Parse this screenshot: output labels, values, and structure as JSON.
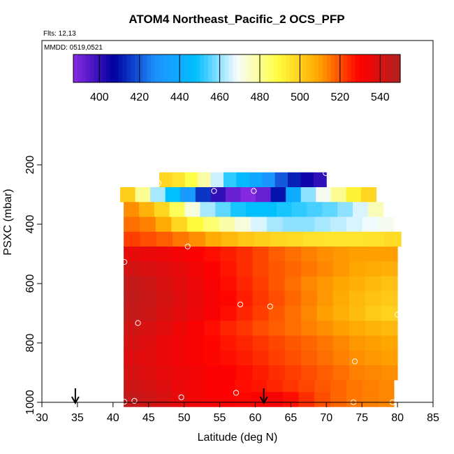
{
  "chart_data": {
    "type": "heatmap",
    "title": "ATOM4 Northeast_Pacific_2 OCS_PFP",
    "flights_note": "Flts: 12,13",
    "date_note": "MMDD: 0519,0521",
    "xlabel": "Latitude (deg N)",
    "ylabel": "PSXC (mbar)",
    "xlim": [
      30,
      85
    ],
    "ylim": [
      1000,
      0
    ],
    "x_ticks": [
      30,
      35,
      40,
      45,
      50,
      55,
      60,
      65,
      70,
      75,
      80,
      85
    ],
    "y_ticks": [
      200,
      400,
      600,
      800,
      1000
    ],
    "colorbar": {
      "range": [
        387,
        550
      ],
      "ticks": [
        400,
        420,
        440,
        460,
        480,
        500,
        520,
        540
      ],
      "colors": [
        "#8a2be2",
        "#0000a0",
        "#1e90ff",
        "#00bfff",
        "#f5fbff",
        "#ffff40",
        "#ffa500",
        "#ff0000",
        "#b22222"
      ]
    },
    "rows": [
      {
        "p": 250,
        "x_start": 46.5,
        "x_end": 70,
        "values": [
          498,
          495,
          488,
          478,
          465,
          452,
          445,
          438,
          430,
          420,
          412,
          405,
          400
        ]
      },
      {
        "p": 300,
        "x_start": 41,
        "x_end": 77,
        "values": [
          500,
          480,
          462,
          448,
          432,
          415,
          400,
          392,
          388,
          392,
          410,
          440,
          460,
          470,
          480,
          492,
          498
        ]
      },
      {
        "p": 350,
        "x_start": 41.5,
        "x_end": 78,
        "values": [
          512,
          506,
          498,
          486,
          472,
          462,
          456,
          450,
          448,
          448,
          450,
          452,
          454,
          456,
          460,
          466,
          476
        ]
      },
      {
        "p": 400,
        "x_start": 41.5,
        "x_end": 79.5,
        "values": [
          516,
          514,
          508,
          498,
          490,
          484,
          478,
          472,
          466,
          462,
          460,
          460,
          462,
          464,
          466,
          468,
          470
        ]
      },
      {
        "p": 450,
        "x_start": 41.5,
        "x_end": 80.5,
        "values": [
          522,
          520,
          518,
          515,
          512,
          508,
          505,
          502,
          500,
          498,
          497,
          496,
          495,
          495,
          495,
          496,
          497
        ]
      },
      {
        "p": 500,
        "x_start": 41.5,
        "x_end": 80,
        "values": [
          536,
          535,
          534,
          532,
          530,
          528,
          526,
          524,
          521,
          518,
          516,
          514,
          512,
          511,
          510,
          510,
          510
        ]
      },
      {
        "p": 550,
        "x_start": 41.5,
        "x_end": 80,
        "values": [
          541,
          540,
          538,
          536,
          533,
          530,
          527,
          524,
          521,
          519,
          517,
          515,
          513,
          511,
          509,
          508,
          507
        ]
      },
      {
        "p": 600,
        "x_start": 41.5,
        "x_end": 80,
        "values": [
          545,
          543,
          540,
          537,
          534,
          531,
          528,
          525,
          522,
          519,
          516,
          513,
          511,
          509,
          507,
          505,
          503
        ]
      },
      {
        "p": 650,
        "x_start": 41.5,
        "x_end": 80,
        "values": [
          546,
          544,
          541,
          538,
          535,
          532,
          529,
          526,
          523,
          520,
          517,
          514,
          511,
          508,
          505,
          503,
          501
        ]
      },
      {
        "p": 700,
        "x_start": 41.5,
        "x_end": 80,
        "values": [
          545,
          543,
          540,
          537,
          534,
          531,
          528,
          525,
          522,
          519,
          516,
          513,
          510,
          507,
          504,
          501,
          499
        ]
      },
      {
        "p": 750,
        "x_start": 41.5,
        "x_end": 80,
        "values": [
          542,
          540,
          537,
          534,
          531,
          528,
          525,
          523,
          520,
          518,
          516,
          514,
          512,
          510,
          508,
          506,
          505
        ]
      },
      {
        "p": 800,
        "x_start": 41.5,
        "x_end": 80,
        "values": [
          540,
          538,
          535,
          533,
          531,
          529,
          527,
          525,
          523,
          521,
          519,
          517,
          515,
          513,
          511,
          510,
          509
        ]
      },
      {
        "p": 850,
        "x_start": 41.5,
        "x_end": 80,
        "values": [
          538,
          537,
          535,
          533,
          531,
          529,
          528,
          526,
          524,
          522,
          520,
          518,
          516,
          514,
          512,
          511,
          510
        ]
      },
      {
        "p": 900,
        "x_start": 41.5,
        "x_end": 80,
        "values": [
          540,
          538,
          536,
          534,
          533,
          531,
          530,
          528,
          526,
          524,
          522,
          520,
          518,
          516,
          514,
          513,
          512
        ]
      },
      {
        "p": 950,
        "x_start": 41.5,
        "x_end": 79.5,
        "values": [
          543,
          541,
          538,
          535,
          533,
          531,
          530,
          528,
          527,
          525,
          523,
          521,
          519,
          517,
          515,
          514,
          513
        ]
      },
      {
        "p": 990,
        "x_start": 41.5,
        "x_end": 79.5,
        "values": [
          545,
          543,
          540,
          536,
          533,
          531,
          530,
          529,
          531,
          532,
          528,
          524,
          520,
          517,
          515,
          514,
          513
        ]
      }
    ],
    "samples": [
      {
        "lat": 69.9,
        "p": 228
      },
      {
        "lat": 46.4,
        "p": 262
      },
      {
        "lat": 54.2,
        "p": 288
      },
      {
        "lat": 59.8,
        "p": 288
      },
      {
        "lat": 50.5,
        "p": 475
      },
      {
        "lat": 41.6,
        "p": 527
      },
      {
        "lat": 57.9,
        "p": 670
      },
      {
        "lat": 62.1,
        "p": 677
      },
      {
        "lat": 43.5,
        "p": 733
      },
      {
        "lat": 80.0,
        "p": 705
      },
      {
        "lat": 74.0,
        "p": 862
      },
      {
        "lat": 57.3,
        "p": 968
      },
      {
        "lat": 49.6,
        "p": 983
      },
      {
        "lat": 41.6,
        "p": 998
      },
      {
        "lat": 43.0,
        "p": 995
      },
      {
        "lat": 73.8,
        "p": 1000
      },
      {
        "lat": 79.3,
        "p": 1000
      }
    ],
    "arrows_lat": [
      34.7,
      61.2
    ]
  }
}
